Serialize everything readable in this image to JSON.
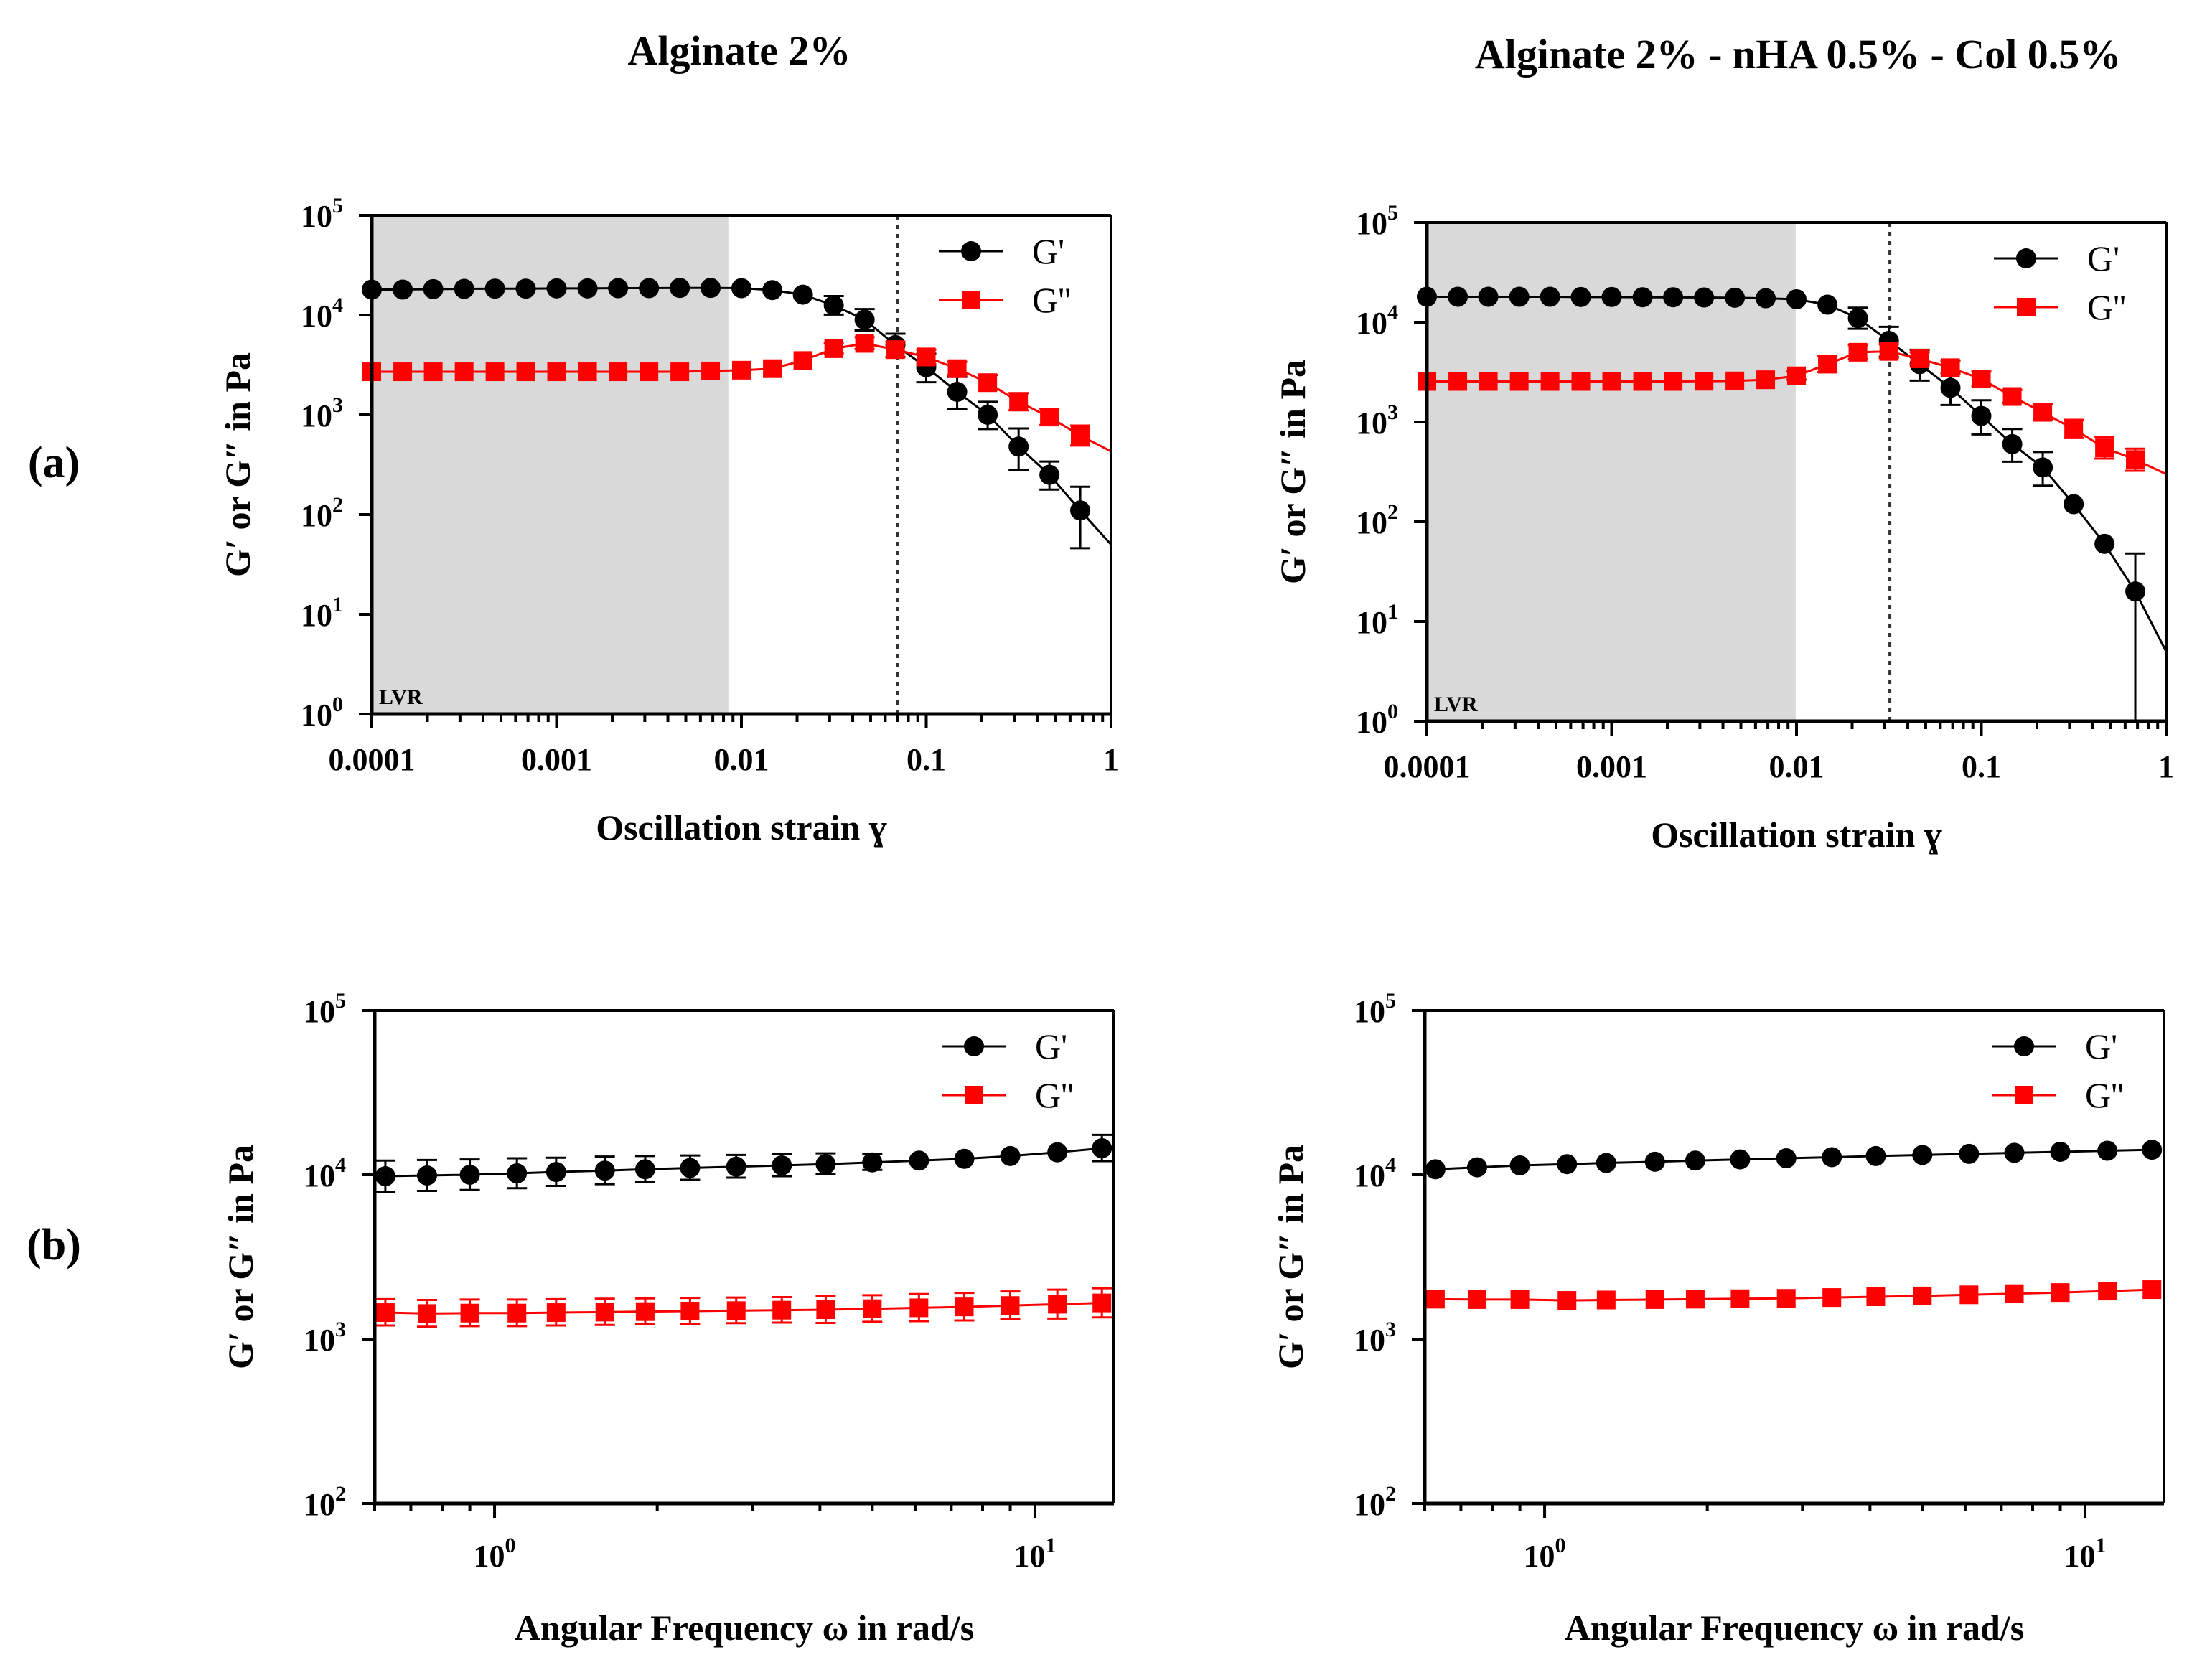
{
  "column_titles": [
    "Alginate 2%",
    "Alginate 2% - nHA 0.5% - Col 0.5%"
  ],
  "row_labels": [
    "(a)",
    "(b)"
  ],
  "colors": {
    "g_prime": "#000000",
    "g_double_prime": "#ff0000",
    "lvr_shade": "#d9d9d9"
  },
  "chart_data": [
    {
      "type": "scatter",
      "panel": "(a) Alginate 2%",
      "xlabel": "Oscillation strain ɣ",
      "ylabel": "G′ or G″ in Pa",
      "x_scale": "log",
      "y_scale": "log",
      "xlim": [
        0.0001,
        1
      ],
      "ylim": [
        1,
        100000
      ],
      "x_ticks": [
        0.0001,
        0.001,
        0.01,
        0.1,
        1
      ],
      "x_tick_labels": [
        "0.0001",
        "0.001",
        "0.01",
        "0.1",
        "1"
      ],
      "y_ticks": [
        1,
        10,
        100,
        1000,
        10000,
        100000
      ],
      "y_tick_labels": [
        {
          "base": "10",
          "exp": "0"
        },
        {
          "base": "10",
          "exp": "1"
        },
        {
          "base": "10",
          "exp": "2"
        },
        {
          "base": "10",
          "exp": "3"
        },
        {
          "base": "10",
          "exp": "4"
        },
        {
          "base": "10",
          "exp": "5"
        }
      ],
      "shaded_region": {
        "x": [
          0.0001,
          0.0085
        ],
        "label": "LVR"
      },
      "vline": 0.07,
      "legend": "top-right",
      "x": [
        0.0001,
        0.000147,
        0.000215,
        0.000316,
        0.000464,
        0.000681,
        0.001,
        0.00147,
        0.00215,
        0.00316,
        0.00464,
        0.00681,
        0.01,
        0.0147,
        0.0215,
        0.0316,
        0.0464,
        0.0681,
        0.1,
        0.147,
        0.215,
        0.316,
        0.464,
        0.681
      ],
      "series": [
        {
          "name": "G'",
          "marker": "circle",
          "values": [
            18000,
            18000,
            18200,
            18300,
            18400,
            18400,
            18500,
            18500,
            18600,
            18600,
            18700,
            18700,
            18600,
            17800,
            16000,
            12500,
            9000,
            5000,
            3000,
            1700,
            1000,
            480,
            250,
            110
          ],
          "error_up": [
            0,
            0,
            0,
            0,
            0,
            0,
            0,
            0,
            0,
            0,
            0,
            0,
            0,
            0,
            0,
            3000,
            2500,
            1500,
            1100,
            700,
            350,
            250,
            90,
            80
          ]
        },
        {
          "name": "G''",
          "marker": "square",
          "values": [
            2700,
            2700,
            2700,
            2700,
            2700,
            2700,
            2700,
            2700,
            2700,
            2700,
            2700,
            2750,
            2800,
            2900,
            3500,
            4600,
            5200,
            4500,
            3800,
            2900,
            2100,
            1350,
            950,
            620
          ],
          "error_up": [
            0,
            0,
            0,
            0,
            0,
            0,
            0,
            0,
            0,
            0,
            0,
            0,
            0,
            0,
            0,
            600,
            800,
            900,
            700,
            500,
            400,
            300,
            200,
            160
          ]
        }
      ],
      "fit_end": {
        "x": 1,
        "g_prime": 50,
        "g_double_prime": 430
      }
    },
    {
      "type": "scatter",
      "panel": "(a) Alginate 2% - nHA 0.5% - Col 0.5%",
      "xlabel": "Oscillation strain ɣ",
      "ylabel": "G′ or G″ in Pa",
      "x_scale": "log",
      "y_scale": "log",
      "xlim": [
        0.0001,
        1
      ],
      "ylim": [
        1,
        100000
      ],
      "x_ticks": [
        0.0001,
        0.001,
        0.01,
        0.1,
        1
      ],
      "x_tick_labels": [
        "0.0001",
        "0.001",
        "0.01",
        "0.1",
        "1"
      ],
      "y_ticks": [
        1,
        10,
        100,
        1000,
        10000,
        100000
      ],
      "y_tick_labels": [
        {
          "base": "10",
          "exp": "0"
        },
        {
          "base": "10",
          "exp": "1"
        },
        {
          "base": "10",
          "exp": "2"
        },
        {
          "base": "10",
          "exp": "3"
        },
        {
          "base": "10",
          "exp": "4"
        },
        {
          "base": "10",
          "exp": "5"
        }
      ],
      "shaded_region": {
        "x": [
          0.0001,
          0.0099
        ],
        "label": "LVR"
      },
      "vline": 0.032,
      "legend": "top-right",
      "x": [
        0.0001,
        0.000147,
        0.000215,
        0.000316,
        0.000464,
        0.000681,
        0.001,
        0.00147,
        0.00215,
        0.00316,
        0.00464,
        0.00681,
        0.01,
        0.0147,
        0.0215,
        0.0316,
        0.0464,
        0.0681,
        0.1,
        0.147,
        0.215,
        0.316,
        0.464,
        0.681
      ],
      "series": [
        {
          "name": "G'",
          "marker": "circle",
          "values": [
            18000,
            18000,
            18000,
            18000,
            18000,
            17900,
            17900,
            17800,
            17800,
            17700,
            17600,
            17400,
            17000,
            15000,
            11000,
            6500,
            3800,
            2200,
            1150,
            600,
            350,
            150,
            60,
            20
          ],
          "error_up": [
            0,
            0,
            0,
            0,
            0,
            0,
            0,
            0,
            0,
            0,
            0,
            0,
            0,
            0,
            3000,
            2500,
            1500,
            900,
            500,
            250,
            150,
            0,
            0,
            28
          ]
        },
        {
          "name": "G''",
          "marker": "square",
          "values": [
            2550,
            2550,
            2550,
            2550,
            2550,
            2550,
            2550,
            2550,
            2550,
            2560,
            2580,
            2650,
            2900,
            3800,
            5000,
            5100,
            4300,
            3500,
            2700,
            1800,
            1250,
            850,
            550,
            420
          ],
          "error_up": [
            0,
            0,
            0,
            0,
            0,
            0,
            0,
            0,
            0,
            0,
            0,
            0,
            300,
            800,
            900,
            900,
            700,
            600,
            500,
            300,
            250,
            200,
            150,
            120
          ]
        }
      ],
      "fit_end": {
        "x": 1,
        "g_prime": 5,
        "g_double_prime": 300
      }
    },
    {
      "type": "scatter",
      "panel": "(b) Alginate 2%",
      "xlabel": "Angular Frequency ω in rad/s",
      "ylabel": "G′ or G″ in Pa",
      "x_scale": "log",
      "y_scale": "log",
      "xlim": [
        0.6,
        14
      ],
      "ylim": [
        100,
        100000
      ],
      "x_ticks": [
        1,
        10
      ],
      "x_tick_labels": [
        {
          "base": "10",
          "exp": "0"
        },
        {
          "base": "10",
          "exp": "1"
        }
      ],
      "y_ticks": [
        100,
        1000,
        10000,
        100000
      ],
      "y_tick_labels": [
        {
          "base": "10",
          "exp": "2"
        },
        {
          "base": "10",
          "exp": "3"
        },
        {
          "base": "10",
          "exp": "4"
        },
        {
          "base": "10",
          "exp": "5"
        }
      ],
      "legend": "top-right",
      "x": [
        0.628,
        0.75,
        0.9,
        1.1,
        1.3,
        1.6,
        1.9,
        2.3,
        2.8,
        3.4,
        4.1,
        5.0,
        6.1,
        7.4,
        9.0,
        11.0,
        13.3
      ],
      "series": [
        {
          "name": "G'",
          "marker": "circle",
          "values": [
            9800,
            9900,
            10000,
            10200,
            10400,
            10600,
            10800,
            11000,
            11200,
            11400,
            11600,
            11900,
            12200,
            12500,
            13000,
            13700,
            14500
          ],
          "error_up": [
            2400,
            2400,
            2400,
            2400,
            2300,
            2300,
            2200,
            2100,
            2000,
            2000,
            1900,
            1500,
            0,
            0,
            0,
            0,
            3000
          ]
        },
        {
          "name": "G''",
          "marker": "square",
          "values": [
            1450,
            1430,
            1440,
            1440,
            1450,
            1460,
            1470,
            1480,
            1490,
            1500,
            1510,
            1530,
            1550,
            1570,
            1600,
            1630,
            1660
          ],
          "error_up": [
            300,
            300,
            300,
            300,
            300,
            300,
            300,
            300,
            300,
            300,
            320,
            320,
            330,
            340,
            350,
            370,
            380
          ]
        }
      ]
    },
    {
      "type": "scatter",
      "panel": "(b) Alginate 2% - nHA 0.5% - Col 0.5%",
      "xlabel": "Angular Frequency ω in rad/s",
      "ylabel": "G′ or G″ in Pa",
      "x_scale": "log",
      "y_scale": "log",
      "xlim": [
        0.6,
        14
      ],
      "ylim": [
        100,
        100000
      ],
      "x_ticks": [
        1,
        10
      ],
      "x_tick_labels": [
        {
          "base": "10",
          "exp": "0"
        },
        {
          "base": "10",
          "exp": "1"
        }
      ],
      "y_ticks": [
        100,
        1000,
        10000,
        100000
      ],
      "y_tick_labels": [
        {
          "base": "10",
          "exp": "2"
        },
        {
          "base": "10",
          "exp": "3"
        },
        {
          "base": "10",
          "exp": "4"
        },
        {
          "base": "10",
          "exp": "5"
        }
      ],
      "legend": "top-right",
      "x": [
        0.628,
        0.75,
        0.9,
        1.1,
        1.3,
        1.6,
        1.9,
        2.3,
        2.8,
        3.4,
        4.1,
        5.0,
        6.1,
        7.4,
        9.0,
        11.0,
        13.3
      ],
      "series": [
        {
          "name": "G'",
          "marker": "circle",
          "values": [
            10800,
            11100,
            11400,
            11600,
            11800,
            12000,
            12200,
            12400,
            12600,
            12800,
            13000,
            13200,
            13400,
            13600,
            13800,
            14000,
            14200
          ],
          "error_up": [
            0,
            0,
            0,
            0,
            0,
            0,
            0,
            0,
            0,
            0,
            0,
            0,
            0,
            0,
            0,
            0,
            0
          ]
        },
        {
          "name": "G''",
          "marker": "square",
          "values": [
            1750,
            1740,
            1740,
            1720,
            1730,
            1740,
            1750,
            1760,
            1770,
            1790,
            1810,
            1830,
            1860,
            1890,
            1920,
            1960,
            2000
          ],
          "error_up": [
            0,
            0,
            0,
            0,
            0,
            0,
            0,
            0,
            0,
            0,
            0,
            0,
            0,
            0,
            0,
            0,
            0
          ]
        }
      ]
    }
  ]
}
